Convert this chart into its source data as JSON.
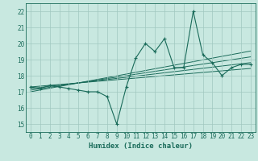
{
  "x": [
    0,
    1,
    2,
    3,
    4,
    5,
    6,
    7,
    8,
    9,
    10,
    11,
    12,
    13,
    14,
    15,
    16,
    17,
    18,
    19,
    20,
    21,
    22,
    23
  ],
  "y_main": [
    17.3,
    17.2,
    17.4,
    17.3,
    17.2,
    17.1,
    17.0,
    17.0,
    16.7,
    15.0,
    17.3,
    19.1,
    20.0,
    19.5,
    20.3,
    18.5,
    18.5,
    22.0,
    19.3,
    18.8,
    18.0,
    18.5,
    18.7,
    18.7
  ],
  "trend1": [
    17.3,
    17.35,
    17.4,
    17.45,
    17.5,
    17.55,
    17.6,
    17.65,
    17.7,
    17.75,
    17.8,
    17.85,
    17.9,
    17.95,
    18.0,
    18.05,
    18.1,
    18.15,
    18.2,
    18.25,
    18.3,
    18.35,
    18.4,
    18.45
  ],
  "trend2": [
    17.2,
    17.27,
    17.34,
    17.41,
    17.48,
    17.55,
    17.62,
    17.69,
    17.76,
    17.83,
    17.9,
    17.97,
    18.04,
    18.11,
    18.18,
    18.25,
    18.32,
    18.39,
    18.46,
    18.53,
    18.6,
    18.67,
    18.74,
    18.81
  ],
  "trend3": [
    17.1,
    17.19,
    17.28,
    17.37,
    17.46,
    17.55,
    17.64,
    17.73,
    17.82,
    17.91,
    18.0,
    18.09,
    18.18,
    18.27,
    18.36,
    18.45,
    18.54,
    18.63,
    18.72,
    18.81,
    18.9,
    18.99,
    19.08,
    19.17
  ],
  "trend4": [
    17.0,
    17.11,
    17.22,
    17.33,
    17.44,
    17.55,
    17.66,
    17.77,
    17.88,
    17.99,
    18.1,
    18.21,
    18.32,
    18.43,
    18.54,
    18.65,
    18.76,
    18.87,
    18.98,
    19.09,
    19.2,
    19.31,
    19.42,
    19.53
  ],
  "line_color": "#1a6b5a",
  "bg_color": "#c8e8e0",
  "grid_color": "#a0c8c0",
  "xlabel": "Humidex (Indice chaleur)",
  "xlim": [
    -0.5,
    23.5
  ],
  "ylim": [
    14.5,
    22.5
  ],
  "yticks": [
    15,
    16,
    17,
    18,
    19,
    20,
    21,
    22
  ],
  "xticks": [
    0,
    1,
    2,
    3,
    4,
    5,
    6,
    7,
    8,
    9,
    10,
    11,
    12,
    13,
    14,
    15,
    16,
    17,
    18,
    19,
    20,
    21,
    22,
    23
  ]
}
